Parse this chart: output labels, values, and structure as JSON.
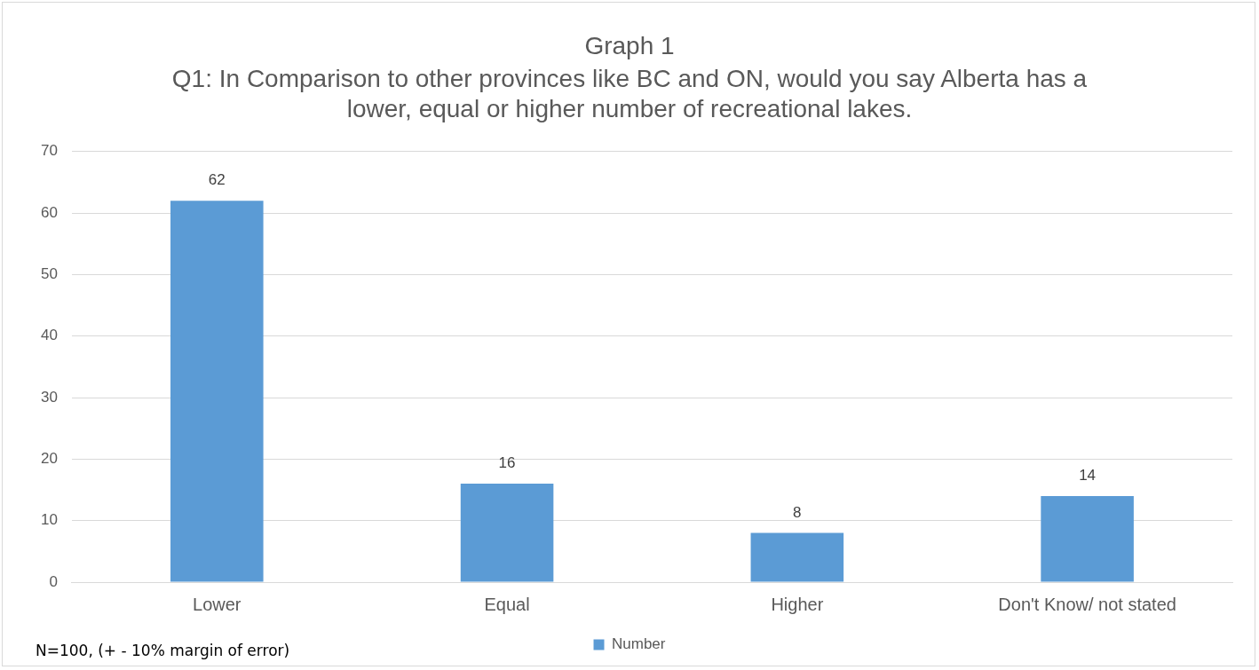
{
  "chart_data": {
    "type": "bar",
    "title": "Graph 1",
    "subtitle": "Q1: In Comparison to other provinces like BC and ON, would you say Alberta has a lower, equal or higher number of recreational lakes.",
    "categories": [
      "Lower",
      "Equal",
      "Higher",
      "Don't Know/ not stated"
    ],
    "series": [
      {
        "name": "Number",
        "color": "#5b9bd5",
        "values": [
          62,
          16,
          8,
          14
        ]
      }
    ],
    "ylim": [
      0,
      70
    ],
    "yticks": [
      0,
      10,
      20,
      30,
      40,
      50,
      60,
      70
    ],
    "grid": "y",
    "legend": "bottom",
    "data_labels": true,
    "annotations": [
      "N=100, (+ - 10% margin of error)"
    ]
  }
}
